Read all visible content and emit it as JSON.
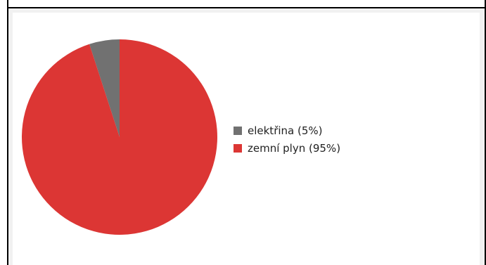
{
  "header": {
    "title": ""
  },
  "chart_data": {
    "type": "pie",
    "title": "",
    "slices": [
      {
        "label": "elektřina (5%)",
        "value": 5,
        "color": "#717171"
      },
      {
        "label": "zemní plyn (95%)",
        "value": 95,
        "color": "#dc3634"
      }
    ],
    "start_angle_deg": 0,
    "direction": "counterclockwise",
    "legend_position": "right"
  }
}
